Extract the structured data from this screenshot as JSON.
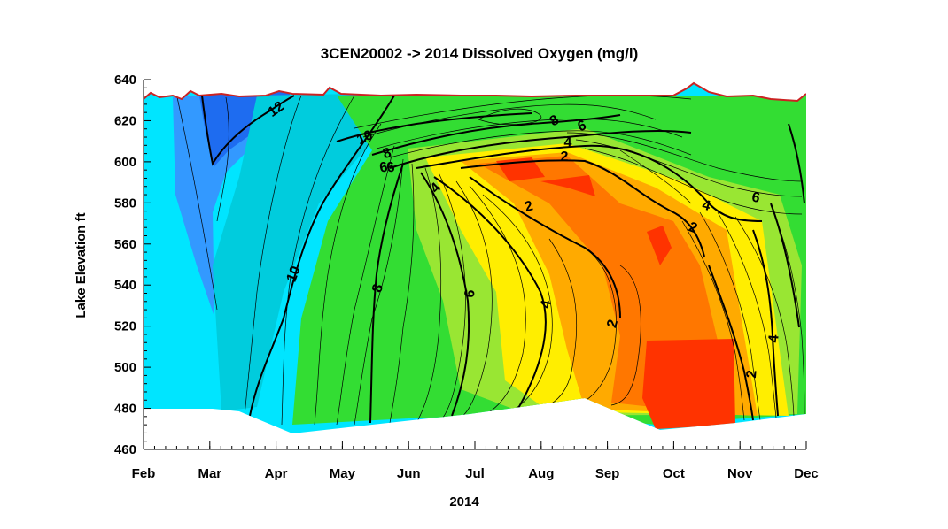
{
  "chart_data": {
    "type": "contour",
    "title": "3CEN20002  ->  2014 Dissolved Oxygen (mg/l)",
    "xlabel": "2014",
    "ylabel": "Lake  Elevation  ft",
    "x_ticks": [
      "Feb",
      "Mar",
      "Apr",
      "May",
      "Jun",
      "Jul",
      "Aug",
      "Sep",
      "Oct",
      "Nov",
      "Dec"
    ],
    "x_tick_months": [
      2,
      3,
      4,
      5,
      6,
      7,
      8,
      9,
      10,
      11,
      12
    ],
    "xlim_months": [
      2,
      12
    ],
    "y_ticks": [
      460,
      480,
      500,
      520,
      540,
      560,
      580,
      600,
      620,
      640
    ],
    "ylim": [
      460,
      640
    ],
    "contour_labels": [
      "12",
      "10",
      "10",
      "8",
      "8",
      "8",
      "6",
      "6",
      "6",
      "6",
      "4",
      "4",
      "4",
      "4",
      "4",
      "2",
      "2",
      "2",
      "2",
      "2",
      "6"
    ],
    "colors": {
      "surface_line": "#cc2222",
      "do_high": "#1e6cf0",
      "do_10": "#00e5ff",
      "do_6": "#33dd33",
      "do_4": "#ffee00",
      "do_low": "#ff3300"
    }
  }
}
